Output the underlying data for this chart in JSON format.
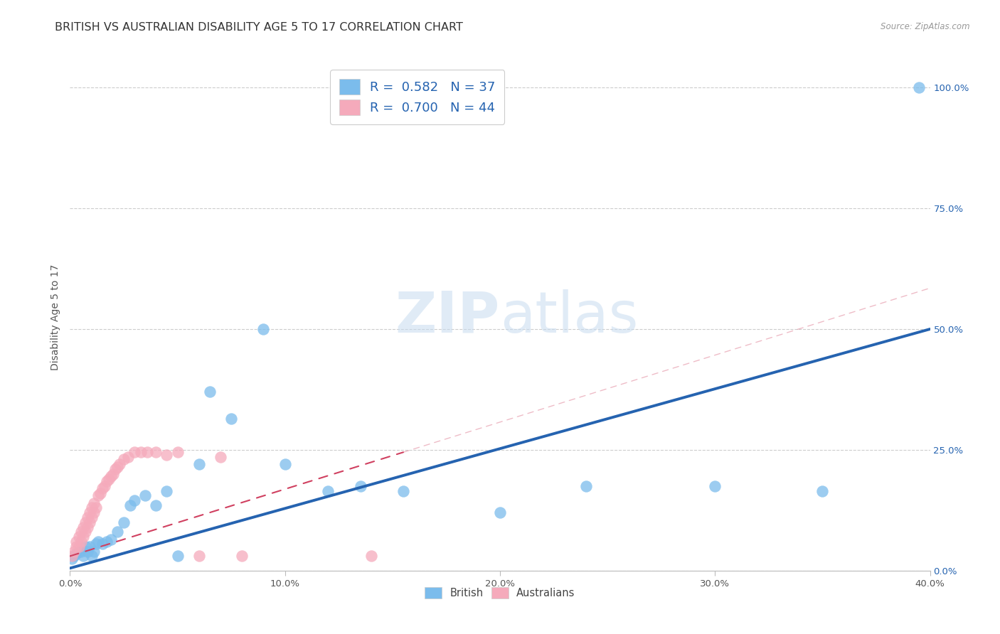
{
  "title": "BRITISH VS AUSTRALIAN DISABILITY AGE 5 TO 17 CORRELATION CHART",
  "source": "Source: ZipAtlas.com",
  "ylabel": "Disability Age 5 to 17",
  "xlim": [
    0.0,
    0.4
  ],
  "ylim": [
    0.0,
    1.05
  ],
  "legend_R_blue": "R =  0.582",
  "legend_N_blue": "N = 37",
  "legend_R_pink": "R =  0.700",
  "legend_N_pink": "N = 44",
  "blue_color": "#7bbcec",
  "pink_color": "#f5aabb",
  "blue_line_color": "#2563b0",
  "pink_line_color": "#d04060",
  "watermark_color": "#c8dcf0",
  "grid_color": "#cccccc",
  "background_color": "#ffffff",
  "title_fontsize": 11.5,
  "axis_label_fontsize": 10,
  "tick_fontsize": 9.5,
  "legend_fontsize": 13,
  "british_x": [
    0.001,
    0.002,
    0.003,
    0.004,
    0.005,
    0.006,
    0.007,
    0.008,
    0.009,
    0.01,
    0.011,
    0.012,
    0.013,
    0.015,
    0.017,
    0.019,
    0.022,
    0.025,
    0.028,
    0.03,
    0.035,
    0.04,
    0.045,
    0.05,
    0.06,
    0.065,
    0.075,
    0.09,
    0.1,
    0.12,
    0.135,
    0.155,
    0.2,
    0.24,
    0.3,
    0.35,
    0.395
  ],
  "british_y": [
    0.025,
    0.03,
    0.035,
    0.04,
    0.04,
    0.03,
    0.05,
    0.04,
    0.05,
    0.03,
    0.04,
    0.055,
    0.06,
    0.055,
    0.06,
    0.065,
    0.08,
    0.1,
    0.135,
    0.145,
    0.155,
    0.135,
    0.165,
    0.03,
    0.22,
    0.37,
    0.315,
    0.5,
    0.22,
    0.165,
    0.175,
    0.165,
    0.12,
    0.175,
    0.175,
    0.165,
    1.0
  ],
  "australian_x": [
    0.001,
    0.002,
    0.003,
    0.003,
    0.004,
    0.004,
    0.005,
    0.005,
    0.006,
    0.006,
    0.007,
    0.007,
    0.008,
    0.008,
    0.009,
    0.009,
    0.01,
    0.01,
    0.011,
    0.011,
    0.012,
    0.013,
    0.014,
    0.015,
    0.016,
    0.017,
    0.018,
    0.019,
    0.02,
    0.021,
    0.022,
    0.023,
    0.025,
    0.027,
    0.03,
    0.033,
    0.036,
    0.04,
    0.045,
    0.05,
    0.06,
    0.07,
    0.08,
    0.14
  ],
  "australian_y": [
    0.03,
    0.04,
    0.05,
    0.06,
    0.05,
    0.07,
    0.06,
    0.08,
    0.07,
    0.09,
    0.08,
    0.1,
    0.09,
    0.11,
    0.1,
    0.12,
    0.11,
    0.13,
    0.12,
    0.14,
    0.13,
    0.155,
    0.16,
    0.17,
    0.175,
    0.185,
    0.19,
    0.195,
    0.2,
    0.21,
    0.215,
    0.22,
    0.23,
    0.235,
    0.245,
    0.245,
    0.245,
    0.245,
    0.24,
    0.245,
    0.03,
    0.235,
    0.03,
    0.03
  ],
  "blue_line_x": [
    0.0,
    0.4
  ],
  "blue_line_y": [
    0.005,
    0.5
  ],
  "pink_line_x": [
    0.0,
    0.155
  ],
  "pink_line_y": [
    0.03,
    0.245
  ]
}
